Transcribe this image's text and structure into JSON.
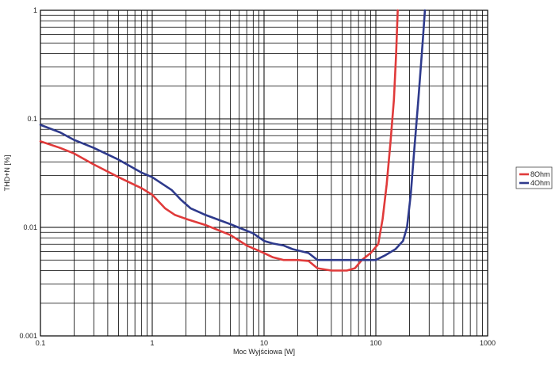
{
  "chart_data": {
    "type": "line",
    "x_scale": "log",
    "y_scale": "log",
    "xlim": [
      0.1,
      1000
    ],
    "ylim": [
      0.001,
      1
    ],
    "xlabel": "Moc Wyjściowa [W]",
    "ylabel": "THD+N [%]",
    "x_tick_labels": [
      "0.1",
      "1",
      "10",
      "100",
      "1000"
    ],
    "y_tick_labels": [
      "1",
      "0.1",
      "0.01",
      "0.001"
    ],
    "grid": true,
    "legend_position": "right",
    "series": [
      {
        "name": "8Ohm",
        "color": "#e03a3a",
        "points": [
          [
            0.1,
            0.062
          ],
          [
            0.15,
            0.054
          ],
          [
            0.2,
            0.048
          ],
          [
            0.3,
            0.038
          ],
          [
            0.5,
            0.029
          ],
          [
            0.8,
            0.023
          ],
          [
            1.0,
            0.02
          ],
          [
            1.3,
            0.015
          ],
          [
            1.6,
            0.013
          ],
          [
            2.0,
            0.012
          ],
          [
            3.0,
            0.0105
          ],
          [
            5.0,
            0.0085
          ],
          [
            7.0,
            0.0068
          ],
          [
            10.0,
            0.0058
          ],
          [
            12.0,
            0.0053
          ],
          [
            15.0,
            0.005
          ],
          [
            20.0,
            0.005
          ],
          [
            25.0,
            0.0049
          ],
          [
            30.0,
            0.0042
          ],
          [
            40.0,
            0.004
          ],
          [
            55.0,
            0.004
          ],
          [
            65.0,
            0.0042
          ],
          [
            75.0,
            0.005
          ],
          [
            90.0,
            0.0058
          ],
          [
            105.0,
            0.007
          ],
          [
            115.0,
            0.012
          ],
          [
            125.0,
            0.025
          ],
          [
            135.0,
            0.06
          ],
          [
            145.0,
            0.15
          ],
          [
            152.0,
            0.4
          ],
          [
            157.0,
            1.0
          ]
        ]
      },
      {
        "name": "4Ohm",
        "color": "#2e3a8c",
        "points": [
          [
            0.1,
            0.088
          ],
          [
            0.15,
            0.075
          ],
          [
            0.2,
            0.064
          ],
          [
            0.3,
            0.054
          ],
          [
            0.5,
            0.042
          ],
          [
            0.8,
            0.032
          ],
          [
            1.0,
            0.029
          ],
          [
            1.5,
            0.022
          ],
          [
            1.8,
            0.018
          ],
          [
            2.2,
            0.015
          ],
          [
            3.0,
            0.013
          ],
          [
            5.0,
            0.0107
          ],
          [
            8.0,
            0.0088
          ],
          [
            10.0,
            0.0075
          ],
          [
            12.0,
            0.0071
          ],
          [
            15.0,
            0.0068
          ],
          [
            18.0,
            0.0063
          ],
          [
            25.0,
            0.0058
          ],
          [
            30.0,
            0.005
          ],
          [
            50.0,
            0.005
          ],
          [
            80.0,
            0.005
          ],
          [
            100.0,
            0.005
          ],
          [
            120.0,
            0.0055
          ],
          [
            150.0,
            0.0063
          ],
          [
            175.0,
            0.0075
          ],
          [
            190.0,
            0.01
          ],
          [
            205.0,
            0.02
          ],
          [
            220.0,
            0.05
          ],
          [
            240.0,
            0.15
          ],
          [
            262.0,
            0.5
          ],
          [
            275.0,
            1.0
          ]
        ]
      }
    ]
  }
}
